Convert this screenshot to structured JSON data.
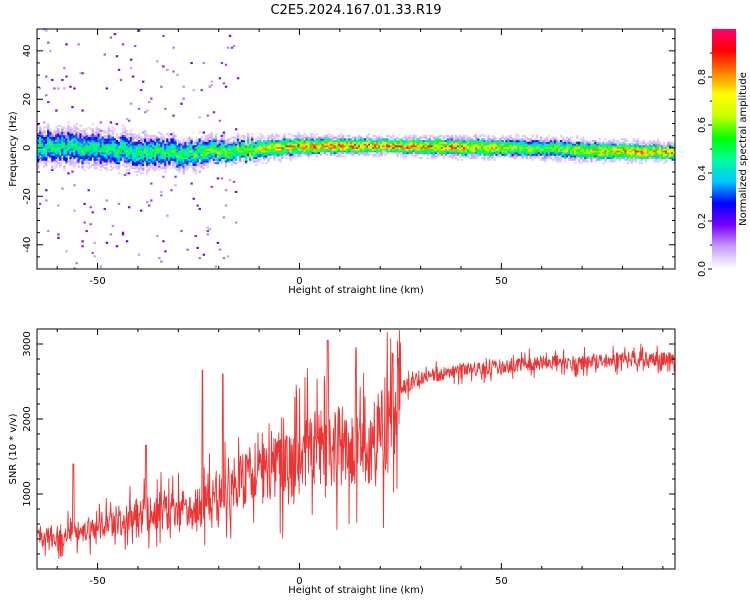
{
  "figure_title": "C2E5.2024.167.01.33.R19",
  "chart_data": [
    {
      "type": "heatmap",
      "xlabel": "Height of straight line (km)",
      "ylabel": "Frequency (Hz)",
      "xlim": [
        -65,
        93
      ],
      "ylim": [
        -50,
        49
      ],
      "x_ticks": [
        -50,
        0,
        50
      ],
      "y_ticks": [
        -40,
        -20,
        0,
        20,
        40
      ],
      "grid": false,
      "colorbar": {
        "label": "Normalized spectral amplitude",
        "range": [
          0,
          1
        ],
        "ticks": [
          "0.0",
          "0.2",
          "0.4",
          "0.6",
          "0.8"
        ],
        "colormap": [
          "#ffffff",
          "#c8a0ff",
          "#7a00ff",
          "#0000ff",
          "#00c8ff",
          "#00ffa0",
          "#00ff00",
          "#c8ff00",
          "#ffff00",
          "#ff8000",
          "#ff0000",
          "#ff0070"
        ]
      },
      "ridge": {
        "description_points_x": [
          -65,
          -50,
          -30,
          -15,
          0,
          20,
          40,
          60,
          75,
          93
        ],
        "center_hz": [
          0.5,
          -0.5,
          -2.5,
          -1.5,
          0.5,
          0.5,
          0,
          -0.5,
          -1.5,
          -2
        ],
        "peak_amplitude": [
          0.5,
          0.5,
          0.55,
          0.65,
          0.8,
          0.85,
          0.8,
          0.6,
          0.75,
          0.85
        ],
        "halfwidth_hz": [
          5,
          5,
          4.5,
          3.5,
          3,
          2.5,
          3,
          3,
          3,
          2.5
        ]
      }
    },
    {
      "type": "line",
      "xlabel": "Height of straight line (km)",
      "ylabel": "SNR (10 * v/v)",
      "xlim": [
        -65,
        93
      ],
      "ylim": [
        0,
        3200
      ],
      "x_ticks": [
        -50,
        0,
        50
      ],
      "y_ticks": [
        1000,
        2000,
        3000
      ],
      "grid": false,
      "series": [
        {
          "color": "#ee3333",
          "x": [
            -65,
            -55,
            -45,
            -35,
            -25,
            -18,
            -12,
            -5,
            0,
            5,
            10,
            15,
            20,
            25,
            30,
            40,
            50,
            60,
            70,
            80,
            93
          ],
          "y": [
            400,
            500,
            650,
            750,
            800,
            1050,
            1200,
            1350,
            1500,
            1650,
            1650,
            1500,
            1750,
            2400,
            2550,
            2650,
            2700,
            2750,
            2750,
            2800,
            2800
          ],
          "peaks": [
            [
              -24,
              2650
            ],
            [
              -19,
              2600
            ],
            [
              7,
              3050
            ],
            [
              14,
              2950
            ],
            [
              -56,
              1400
            ],
            [
              -38,
              1650
            ]
          ]
        }
      ]
    }
  ]
}
